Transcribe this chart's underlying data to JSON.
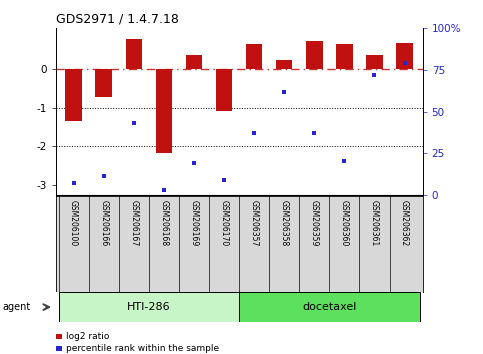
{
  "title": "GDS2971 / 1.4.7.18",
  "samples": [
    "GSM206100",
    "GSM206166",
    "GSM206167",
    "GSM206168",
    "GSM206169",
    "GSM206170",
    "GSM206357",
    "GSM206358",
    "GSM206359",
    "GSM206360",
    "GSM206361",
    "GSM206362"
  ],
  "log2_ratio": [
    -1.35,
    -0.72,
    0.78,
    -2.18,
    0.37,
    -1.08,
    0.65,
    0.22,
    0.73,
    0.65,
    0.35,
    0.68
  ],
  "percentile_rank": [
    7,
    11,
    43,
    3,
    19,
    9,
    37,
    62,
    37,
    20,
    72,
    79
  ],
  "groups": [
    {
      "label": "HTI-286",
      "start": 0,
      "end": 5,
      "color": "#c8f5c8"
    },
    {
      "label": "docetaxel",
      "start": 6,
      "end": 11,
      "color": "#5de05d"
    }
  ],
  "bar_color": "#c01010",
  "dot_color": "#2525cc",
  "ylim_left": [
    -3.25,
    1.05
  ],
  "ylim_right": [
    0,
    100
  ],
  "yticks_left": [
    -3,
    -2,
    -1,
    0
  ],
  "ytick_left_labels": [
    "-3",
    "-2",
    "-1",
    "0"
  ],
  "yticks_right": [
    0,
    25,
    50,
    75,
    100
  ],
  "ytick_right_labels": [
    "0",
    "25",
    "50",
    "75",
    "100%"
  ],
  "hlines": [
    -1.0,
    -2.0
  ],
  "zero_line_color": "#cc3333",
  "background_color": "#ffffff",
  "agent_label": "agent",
  "legend_log2": "log2 ratio",
  "legend_pct": "percentile rank within the sample",
  "bar_width": 0.55
}
